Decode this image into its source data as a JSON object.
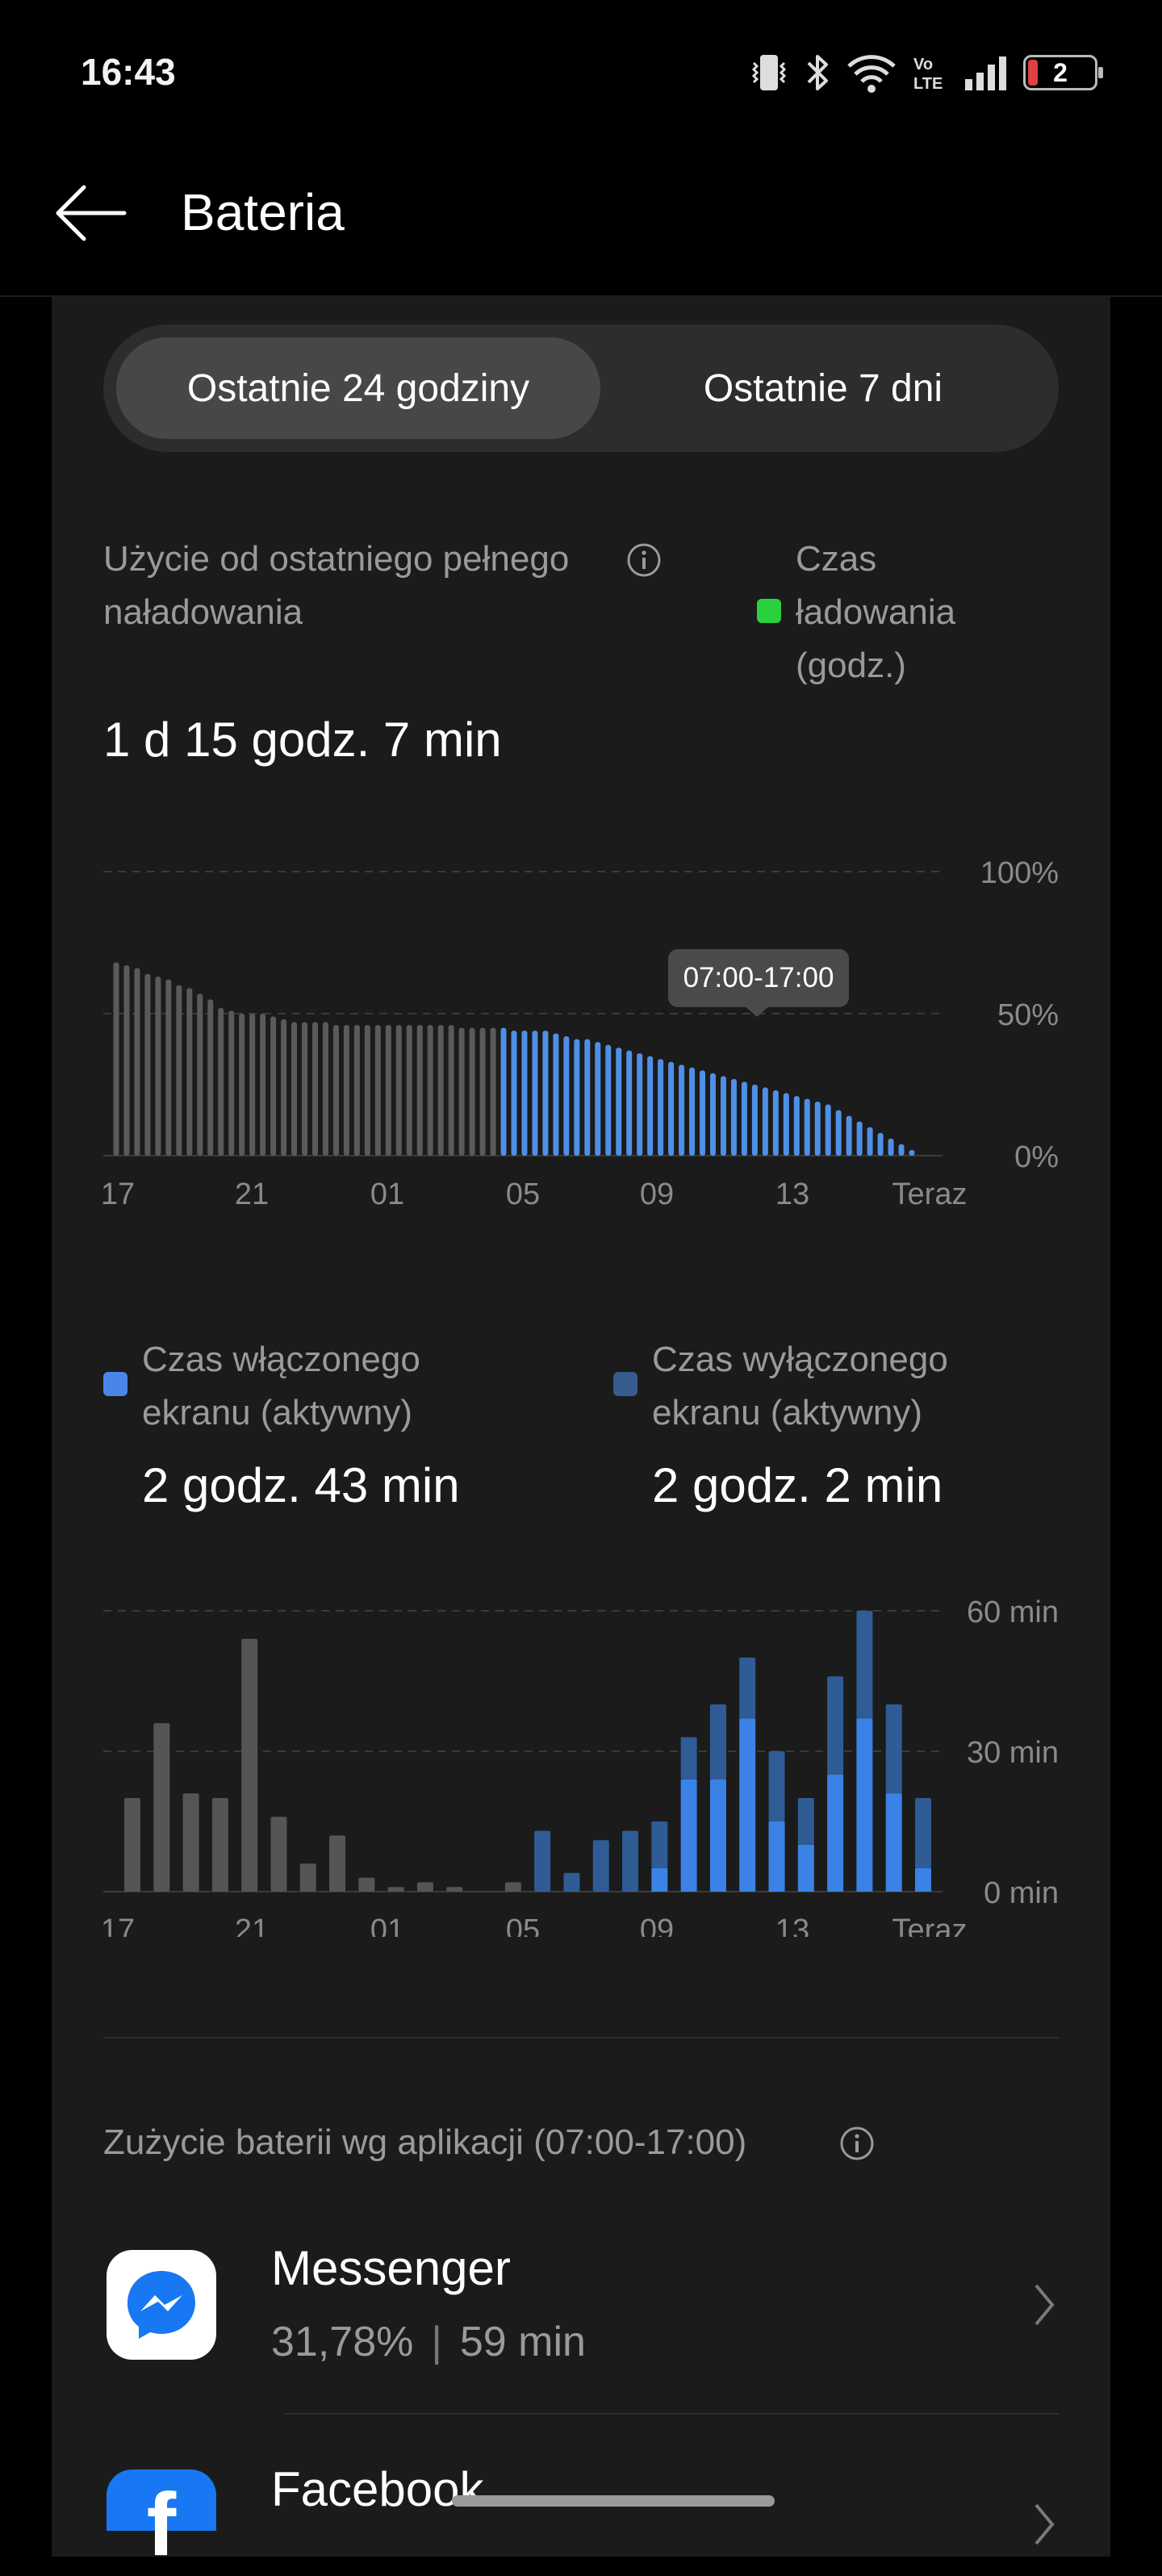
{
  "status_bar": {
    "time": "16:43",
    "battery_level": "2"
  },
  "header": {
    "title": "Bateria"
  },
  "tabs": [
    {
      "label": "Ostatnie 24 godziny",
      "selected": true
    },
    {
      "label": "Ostatnie 7 dni",
      "selected": false
    }
  ],
  "usage": {
    "label": "Użycie od ostatniego pełnego naładowania",
    "value": "1 d 15 godz. 7 min",
    "charging_legend": "Czas ładowania (godz.)",
    "charging_color": "#2bd13c"
  },
  "battery_chart": {
    "y_labels": [
      "100%",
      "50%",
      "0%"
    ],
    "x_labels": [
      "17",
      "21",
      "01",
      "05",
      "09",
      "13",
      "Teraz"
    ],
    "tooltip": "07:00-17:00"
  },
  "screen_stats": {
    "on_label": "Czas włączonego ekranu (aktywny)",
    "on_value": "2 godz. 43 min",
    "on_color": "#4a86e8",
    "off_label": "Czas wyłączonego ekranu (aktywny)",
    "off_value": "2 godz. 2 min",
    "off_color": "#355c8c"
  },
  "screen_chart": {
    "y_labels": [
      "60 min",
      "30 min",
      "0 min"
    ],
    "x_labels": [
      "17",
      "21",
      "01",
      "05",
      "09",
      "13",
      "Teraz"
    ]
  },
  "apps_section": {
    "title": "Zużycie baterii wg aplikacji (07:00-17:00)",
    "apps": [
      {
        "name": "Messenger",
        "percent": "31,78%",
        "time": "59 min",
        "icon": "messenger-icon"
      },
      {
        "name": "Facebook",
        "icon": "facebook-icon"
      }
    ]
  },
  "chart_data": [
    {
      "type": "bar",
      "title": "",
      "ylim": [
        0,
        100
      ],
      "y_unit": "%",
      "x_tick_labels": [
        "17",
        "21",
        "01",
        "05",
        "09",
        "13",
        "Teraz"
      ],
      "series": [
        {
          "name": "",
          "values": [
            68,
            67,
            66,
            64,
            63,
            62,
            60,
            59,
            57,
            55,
            52,
            51,
            50,
            50,
            50,
            49,
            48,
            47,
            47,
            47,
            47,
            46,
            46,
            46,
            46,
            46,
            46,
            46,
            46,
            46,
            46,
            46,
            46,
            45,
            45,
            45,
            45,
            45,
            44,
            44,
            44,
            44,
            43,
            42,
            41,
            41,
            40,
            39,
            38,
            37,
            36,
            35,
            34,
            33,
            32,
            31,
            30,
            29,
            28,
            27,
            26,
            25,
            24,
            23,
            22,
            21,
            20,
            19,
            18,
            16,
            14,
            12,
            10,
            8,
            6,
            4,
            2
          ]
        }
      ],
      "highlight_range": "07:00-17:00",
      "grid": true
    },
    {
      "type": "bar",
      "title": "",
      "ylim": [
        0,
        60
      ],
      "y_unit": "min",
      "x_tick_labels": [
        "17",
        "21",
        "01",
        "05",
        "09",
        "13",
        "Teraz"
      ],
      "series": [
        {
          "name": "Czas włączonego ekranu (aktywny)",
          "values": [
            0,
            0,
            0,
            0,
            0,
            0,
            0,
            0,
            0,
            0,
            0,
            0,
            0,
            0,
            0,
            0,
            0,
            0,
            5,
            24,
            24,
            37,
            15,
            10,
            25,
            37,
            21,
            5
          ]
        },
        {
          "name": "Czas wyłączonego ekranu (aktywny)",
          "values": [
            20,
            36,
            21,
            20,
            54,
            16,
            6,
            12,
            3,
            1,
            2,
            1,
            0,
            2,
            13,
            4,
            11,
            13,
            10,
            9,
            16,
            13,
            15,
            10,
            21,
            23,
            19,
            15
          ]
        }
      ],
      "grid": true
    }
  ]
}
